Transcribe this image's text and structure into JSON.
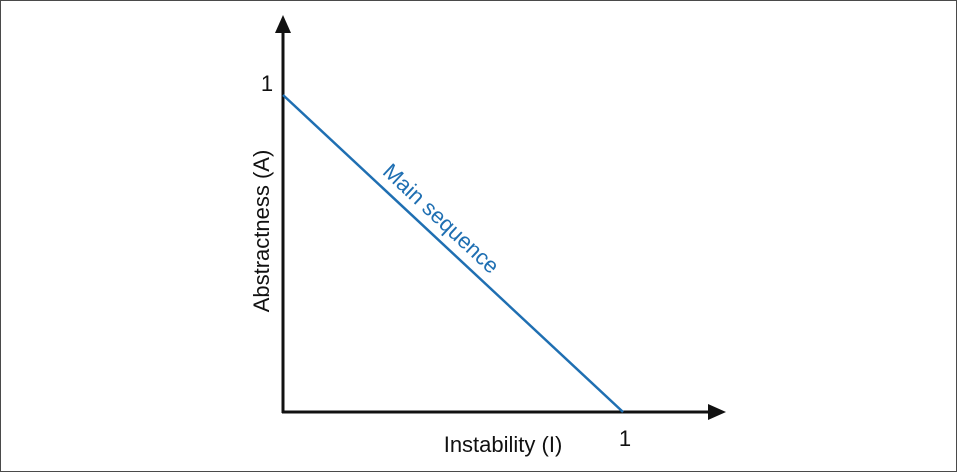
{
  "chart_data": {
    "type": "line",
    "xlabel": "Instability (I)",
    "ylabel": "Abstractness (A)",
    "xlim": [
      0,
      1.2
    ],
    "ylim": [
      0,
      1.2
    ],
    "x_ticks": [
      "1"
    ],
    "y_ticks": [
      "1"
    ],
    "series": [
      {
        "name": "Main sequence",
        "color": "#1f6fb2",
        "x": [
          0,
          1
        ],
        "y": [
          1,
          0
        ]
      }
    ],
    "grid": false,
    "axis_color": "#111111"
  }
}
